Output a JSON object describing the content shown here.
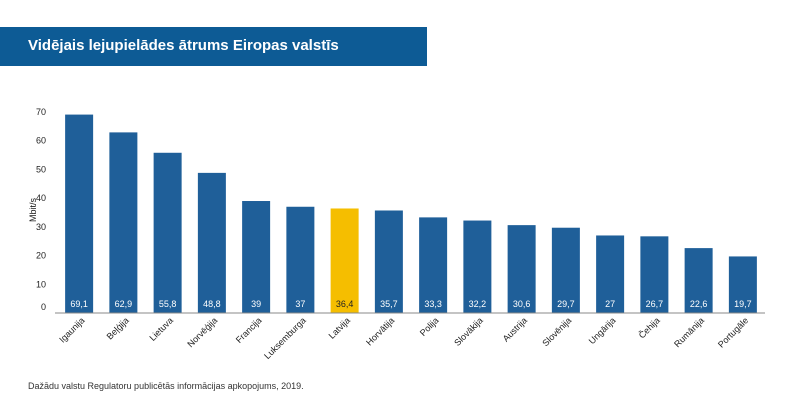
{
  "header": {
    "title": "Vidējais lejupielādes ātrums Eiropas valstīs"
  },
  "footer": {
    "source": "Dažādu valstu Regulatoru publicētās informācijas apkopojums, 2019."
  },
  "colors": {
    "bar": "#1f5f99",
    "highlight": "#f5be00",
    "title_bg": "#0d5b95"
  },
  "chart_data": {
    "type": "bar",
    "title": "Vidējais lejupielādes ātrums Eiropas valstīs",
    "ylabel": "Mbit/s",
    "xlabel": "",
    "ylim": [
      0,
      70
    ],
    "yticks": [
      "0",
      "10",
      "20",
      "30",
      "40",
      "50",
      "60",
      "70"
    ],
    "categories": [
      "Igaunija",
      "Beļģija",
      "Lietuva",
      "Norvēģija",
      "Francija",
      "Luksemburga",
      "Latvija",
      "Horvātija",
      "Polija",
      "Slovākija",
      "Austrija",
      "Slovēnija",
      "Ungārija",
      "Čehija",
      "Rumānija",
      "Portugāle"
    ],
    "values": [
      69.1,
      62.9,
      55.8,
      48.8,
      39,
      37,
      36.4,
      35.7,
      33.3,
      32.2,
      30.6,
      29.7,
      27,
      26.7,
      22.6,
      19.7
    ],
    "value_labels": [
      "69,1",
      "62,9",
      "55,8",
      "48,8",
      "39",
      "37",
      "36,4",
      "35,7",
      "33,3",
      "32,2",
      "30,6",
      "29,7",
      "27",
      "26,7",
      "22,6",
      "19,7"
    ],
    "highlight": "Latvija",
    "grid": false,
    "legend": "none"
  }
}
